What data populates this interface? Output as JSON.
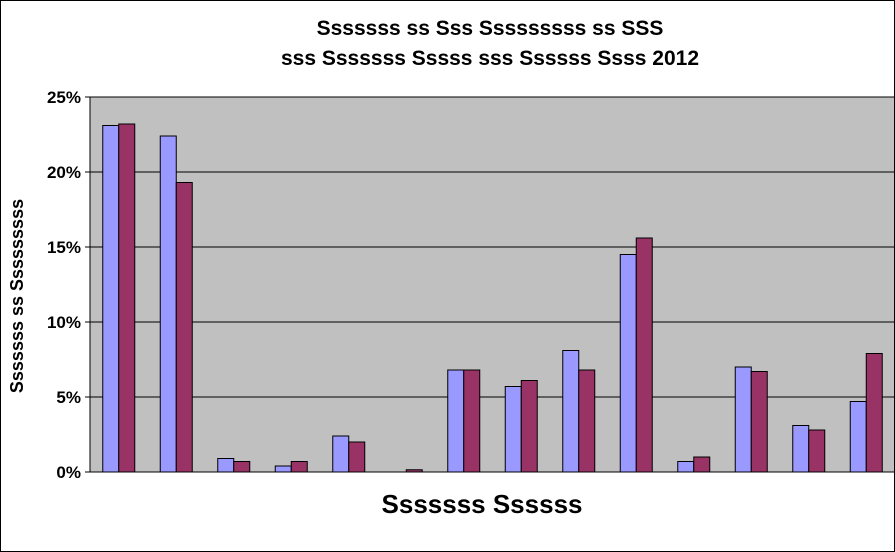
{
  "chart_data": {
    "type": "bar",
    "title_lines": [
      "Sssssss ss Sss Sssssssss ss SSS",
      "sss Sssssss Sssss sss Ssssss Ssss 2012"
    ],
    "xlabel": "Sssssss Ssssss",
    "ylabel": "Sssssss ss Sssssssss",
    "ylim": [
      0,
      25
    ],
    "yticks": [
      "0%",
      "5%",
      "10%",
      "15%",
      "20%",
      "25%"
    ],
    "categories": [
      "",
      "",
      "",
      "",
      "",
      "",
      "",
      "",
      "",
      "",
      "",
      "",
      "",
      ""
    ],
    "series": [
      {
        "values": [
          23.1,
          22.4,
          0.9,
          0.4,
          2.4,
          0.0,
          6.8,
          5.7,
          8.1,
          14.5,
          0.7,
          7.0,
          3.1,
          4.7
        ]
      },
      {
        "values": [
          23.2,
          19.3,
          0.7,
          0.7,
          2.0,
          0.15,
          6.8,
          6.1,
          6.8,
          15.6,
          1.0,
          6.7,
          2.8,
          7.9
        ]
      }
    ],
    "colors": [
      "#9999ff",
      "#993366"
    ],
    "plot_background": "#c0c0c0",
    "grid": true
  }
}
